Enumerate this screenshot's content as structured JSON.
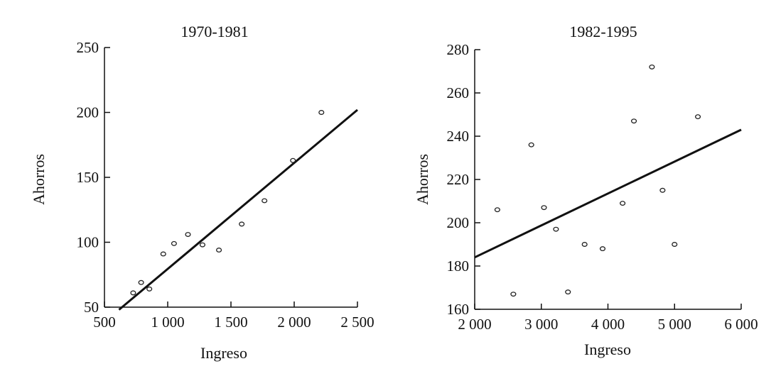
{
  "chart_data": [
    {
      "type": "scatter",
      "title": "1970-1981",
      "xlabel": "Ingreso",
      "ylabel": "Ahorros",
      "xlim": [
        500,
        2500
      ],
      "ylim": [
        50,
        250
      ],
      "x_ticks": [
        500,
        1000,
        1500,
        2000,
        2500
      ],
      "x_tick_labels": [
        "500",
        "1 000",
        "1 500",
        "2 000",
        "2 500"
      ],
      "y_ticks": [
        50,
        100,
        150,
        200,
        250
      ],
      "y_tick_labels": [
        "50",
        "100",
        "150",
        "200",
        "250"
      ],
      "points": [
        {
          "x": 727,
          "y": 61
        },
        {
          "x": 790,
          "y": 69
        },
        {
          "x": 855,
          "y": 64
        },
        {
          "x": 965,
          "y": 91
        },
        {
          "x": 1050,
          "y": 99
        },
        {
          "x": 1160,
          "y": 106
        },
        {
          "x": 1275,
          "y": 98
        },
        {
          "x": 1405,
          "y": 94
        },
        {
          "x": 1585,
          "y": 114
        },
        {
          "x": 1765,
          "y": 132
        },
        {
          "x": 1990,
          "y": 163
        },
        {
          "x": 2215,
          "y": 200
        }
      ],
      "fit_line": {
        "x": [
          615,
          2500
        ],
        "y": [
          48,
          202
        ]
      }
    },
    {
      "type": "scatter",
      "title": "1982-1995",
      "xlabel": "Ingreso",
      "ylabel": "Ahorros",
      "xlim": [
        2000,
        6000
      ],
      "ylim": [
        160,
        280
      ],
      "x_ticks": [
        2000,
        3000,
        4000,
        5000,
        6000
      ],
      "x_tick_labels": [
        "2 000",
        "3 000",
        "4 000",
        "5 000",
        "6 000"
      ],
      "y_ticks": [
        160,
        180,
        200,
        220,
        240,
        260,
        280
      ],
      "y_tick_labels": [
        "160",
        "180",
        "200",
        "220",
        "240",
        "260",
        "280"
      ],
      "points": [
        {
          "x": 2340,
          "y": 206
        },
        {
          "x": 2580,
          "y": 167
        },
        {
          "x": 2850,
          "y": 236
        },
        {
          "x": 3040,
          "y": 207
        },
        {
          "x": 3220,
          "y": 197
        },
        {
          "x": 3400,
          "y": 168
        },
        {
          "x": 3650,
          "y": 190
        },
        {
          "x": 3920,
          "y": 188
        },
        {
          "x": 4220,
          "y": 209
        },
        {
          "x": 4390,
          "y": 247
        },
        {
          "x": 4660,
          "y": 272
        },
        {
          "x": 4820,
          "y": 215
        },
        {
          "x": 5000,
          "y": 190
        },
        {
          "x": 5350,
          "y": 249
        }
      ],
      "fit_line": {
        "x": [
          2000,
          6000
        ],
        "y": [
          184,
          243
        ]
      }
    }
  ]
}
